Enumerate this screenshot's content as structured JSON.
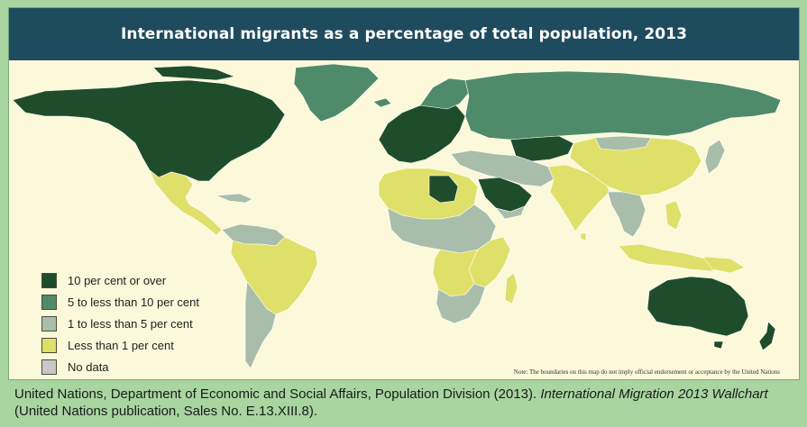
{
  "title": "International migrants as a percentage of total population, 2013",
  "colors": {
    "ten_plus": "#1f4d2b",
    "five_to_ten": "#4f8b6a",
    "one_to_five": "#a9bdab",
    "less_than_one": "#dfe06a",
    "no_data": "#c8c8c8",
    "background": "#fbf9da",
    "title_bar": "#1f4b5e",
    "frame": "#a8d5a0"
  },
  "legend": [
    {
      "label": "10 per cent or over",
      "color": "#1f4d2b"
    },
    {
      "label": "5 to less than 10 per cent",
      "color": "#4f8b6a"
    },
    {
      "label": "1 to less than 5 per cent",
      "color": "#a9bdab"
    },
    {
      "label": "Less than 1 per cent",
      "color": "#dfe06a"
    },
    {
      "label": "No data",
      "color": "#c8c8c8"
    }
  ],
  "note": "Note: The boundaries on this map do not imply official endorsement or acceptance by the United Nations",
  "caption": {
    "part1": "United Nations, Department of Economic and Social Affairs, Population Division (2013). ",
    "italic": "International Migration 2013 Wallchart",
    "part2": " (United Nations publication, Sales No. E.13.XIII.8)."
  }
}
